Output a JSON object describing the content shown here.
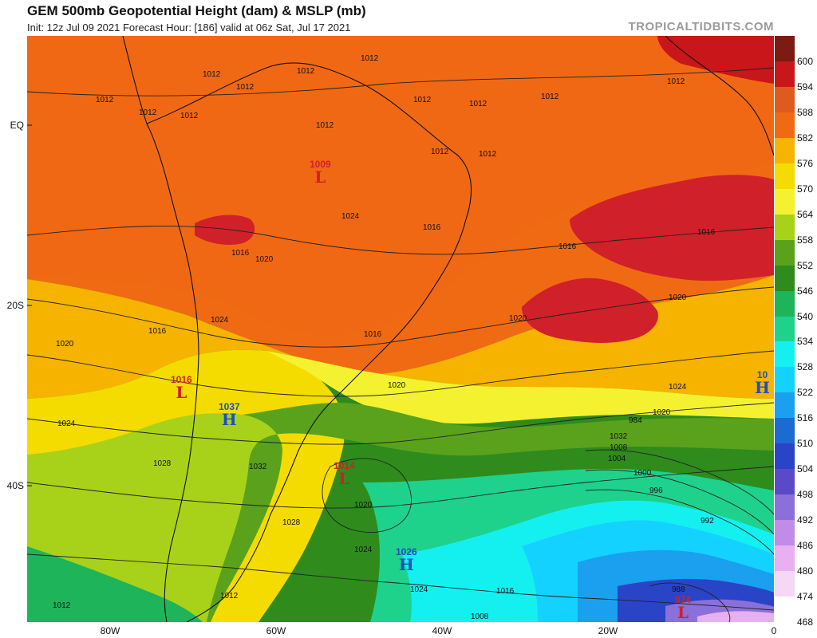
{
  "header": {
    "title": "GEM 500mb Geopotential Height (dam) & MSLP (mb)",
    "subtitle": "Init: 12z Jul 09 2021   Forecast Hour: [186]   valid at 06z Sat, Jul 17 2021",
    "brand": "TROPICALTIDBITS.COM"
  },
  "axes": {
    "lat_labels": [
      {
        "text": "EQ",
        "lat": 0
      },
      {
        "text": "20S",
        "lat": -20
      },
      {
        "text": "40S",
        "lat": -40
      }
    ],
    "lon_labels": [
      {
        "text": "80W",
        "lon": -80
      },
      {
        "text": "60W",
        "lon": -60
      },
      {
        "text": "40W",
        "lon": -40
      },
      {
        "text": "20W",
        "lon": -20
      },
      {
        "text": "0",
        "lon": 0
      }
    ]
  },
  "colorbar": {
    "levels": [
      "600",
      "594",
      "588",
      "582",
      "576",
      "570",
      "564",
      "558",
      "552",
      "546",
      "540",
      "534",
      "528",
      "522",
      "516",
      "510",
      "504",
      "498",
      "492",
      "486",
      "480",
      "474",
      "468"
    ],
    "colors": [
      "#7a1c12",
      "#c8161a",
      "#e05a1e",
      "#f06a14",
      "#f6b400",
      "#f4dc00",
      "#f4f230",
      "#a8d21a",
      "#5aa21c",
      "#2f8b1c",
      "#1eb45a",
      "#1ed28c",
      "#14f0f0",
      "#14d2ff",
      "#1aa0ee",
      "#1c6ad2",
      "#2a44c8",
      "#5a4ac8",
      "#8a70d8",
      "#c08ce8",
      "#e8b0f0",
      "#f4d8f6",
      "#ffffff"
    ]
  },
  "centers": [
    {
      "type": "L",
      "value": "1009",
      "color": "#d0202a"
    },
    {
      "type": "L",
      "value": "1016",
      "color": "#d0202a"
    },
    {
      "type": "H",
      "value": "1037",
      "color": "#1a50c0"
    },
    {
      "type": "L",
      "value": "1014",
      "color": "#d0202a"
    },
    {
      "type": "H",
      "value": "1026",
      "color": "#1a50c0"
    },
    {
      "type": "L",
      "value": "974",
      "color": "#d0202a"
    },
    {
      "type": "H",
      "value": "10",
      "color": "#1a50c0"
    }
  ],
  "isobar_labels": [
    "1012",
    "1012",
    "1012",
    "1012",
    "1012",
    "1012",
    "1012",
    "1012",
    "1012",
    "1012",
    "1012",
    "1012",
    "1012",
    "1012",
    "1016",
    "1016",
    "1016",
    "1016",
    "1016",
    "1016",
    "1020",
    "1020",
    "1020",
    "1020",
    "1020",
    "1020",
    "1020",
    "1024",
    "1024",
    "1024",
    "1024",
    "1024",
    "1024",
    "1028",
    "1028",
    "1032",
    "1032",
    "1008",
    "1004",
    "1000",
    "996",
    "992",
    "988",
    "984",
    "1016",
    "1012",
    "1012",
    "1008"
  ]
}
